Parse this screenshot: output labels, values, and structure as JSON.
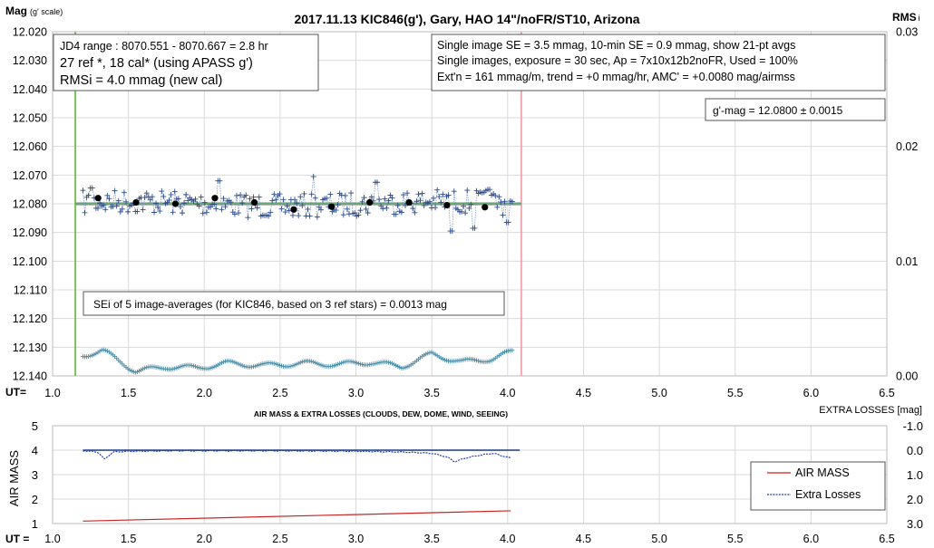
{
  "chart_data": [
    {
      "type": "scatter",
      "title": "2017.11.13  KIC846(g'),  Gary, HAO  14\"/noFR/ST10,  Arizona",
      "ylabel_main": "Mag",
      "ylabel_sub": "(g' scale)",
      "y2label_main": "RMS",
      "y2label_sub": "i",
      "xlabel": "UT=",
      "xlim": [
        1.0,
        6.5
      ],
      "ylim": [
        12.14,
        12.02
      ],
      "y2lim": [
        0.0,
        0.03
      ],
      "xticks": [
        "1.0",
        "1.5",
        "2.0",
        "2.5",
        "3.0",
        "3.5",
        "4.0",
        "4.5",
        "5.0",
        "5.5",
        "6.0",
        "6.5"
      ],
      "yticks": [
        "12.020",
        "12.030",
        "12.040",
        "12.050",
        "12.060",
        "12.070",
        "12.080",
        "12.090",
        "12.100",
        "12.110",
        "12.120",
        "12.130",
        "12.140"
      ],
      "y2ticks": [
        "0.03",
        "0.02",
        "0.01",
        "0.00"
      ],
      "grid": true,
      "vertical_lines": {
        "green_x": 1.15,
        "pink_x": 4.09
      },
      "fit_line": {
        "y": 12.08,
        "x_start": 1.15,
        "x_end": 4.09
      },
      "info_box_left": [
        "JD4 range : 8070.551 - 8070.667 = 2.8  hr",
        "27 ref *, 18 cal* (using APASS g')",
        "RMSi = 4.0 mmag (new cal)"
      ],
      "info_box_right": [
        "Single image SE = 3.5 mmag, 10-min SE = 0.9 mmag, show  21-pt avgs",
        "Single images, exposure = 30 sec, Ap = 7x10x12b2noFR,  Used = 100%",
        "Ext'n = 161 mmag/m, trend =  +0 mmag/hr, AMC' = +0.0080 mag/airmss"
      ],
      "mag_box": "g'-mag = 12.0800 ± 0.0015",
      "sei_note": "SEi of 5 image-averages (for KIC846, based on 3 ref stars) = 0.0013  mag",
      "series": [
        {
          "role": "averages",
          "color": "#000000",
          "x": [
            1.3,
            1.55,
            1.81,
            2.07,
            2.33,
            2.59,
            2.84,
            3.09,
            3.35,
            3.6,
            3.85
          ],
          "y": [
            12.078,
            12.0795,
            12.08,
            12.078,
            12.0795,
            12.082,
            12.081,
            12.0795,
            12.0795,
            12.0805,
            12.0812
          ]
        },
        {
          "role": "single-images",
          "color": "#2c4a8a",
          "x_start": 1.2,
          "x_end": 4.03,
          "count": 230,
          "base": 12.08,
          "y_excursions": [
            {
              "x": 1.25,
              "y": 12.0745
            },
            {
              "x": 2.1,
              "y": 12.072
            },
            {
              "x": 2.72,
              "y": 12.0705
            },
            {
              "x": 3.13,
              "y": 12.0725
            },
            {
              "x": 3.63,
              "y": 12.0895
            },
            {
              "x": 3.78,
              "y": 12.0885
            },
            {
              "x": 3.87,
              "y": 12.075
            },
            {
              "x": 4.0,
              "y": 12.0865
            }
          ]
        },
        {
          "role": "rms-i",
          "color": "#4a8ca8",
          "x_start": 1.2,
          "x_end": 4.03,
          "x": [
            1.2,
            1.33,
            1.55,
            1.75,
            1.95,
            2.15,
            2.4,
            2.65,
            2.9,
            3.1,
            3.3,
            3.5,
            3.7,
            3.9,
            4.03
          ],
          "y": [
            0.0018,
            0.0022,
            0.0004,
            0.0008,
            0.0007,
            0.0011,
            0.0009,
            0.0011,
            0.001,
            0.0012,
            0.0008,
            0.0019,
            0.0012,
            0.0015,
            0.0021
          ]
        }
      ]
    },
    {
      "type": "line",
      "title": "AIR MASS & EXTRA LOSSES (CLOUDS, DEW, DOME, WIND, SEEING)",
      "ylabel": "AIR MASS",
      "y2label": "EXTRA LOSSES [mag]",
      "xlabel": "UT =",
      "xlim": [
        1.0,
        6.5
      ],
      "ylim": [
        1,
        5
      ],
      "y2lim": [
        -1.0,
        3.0
      ],
      "xticks": [
        "1.0",
        "1.5",
        "2.0",
        "2.5",
        "3.0",
        "3.5",
        "4.0",
        "4.5",
        "5.0",
        "5.5",
        "6.0",
        "6.5"
      ],
      "yticks": [
        "5",
        "4",
        "3",
        "2",
        "1"
      ],
      "y2ticks": [
        "-1.0",
        "0.0",
        "1.0",
        "2.0",
        "3.0"
      ],
      "legend": [
        "AIR MASS",
        "Extra Losses"
      ],
      "legend_position": "right",
      "series": [
        {
          "name": "AIR MASS",
          "color": "#cc2222",
          "x": [
            1.2,
            4.02
          ],
          "y": [
            1.1,
            1.52
          ]
        },
        {
          "name": "Extra Losses",
          "color": "#1f3fbf",
          "x": [
            1.2,
            1.3,
            1.34,
            1.4,
            1.5,
            1.8,
            2.5,
            3.0,
            3.3,
            3.5,
            3.6,
            3.65,
            3.72,
            3.8,
            3.9,
            4.02
          ],
          "y": [
            0.0,
            0.05,
            0.35,
            0.05,
            0.02,
            0.0,
            0.0,
            0.02,
            0.05,
            0.1,
            0.25,
            0.45,
            0.3,
            0.2,
            0.1,
            0.3
          ]
        },
        {
          "name": "baseline",
          "color": "#1a3a7a",
          "x": [
            1.2,
            4.08
          ],
          "y": [
            4,
            4
          ]
        }
      ]
    }
  ]
}
